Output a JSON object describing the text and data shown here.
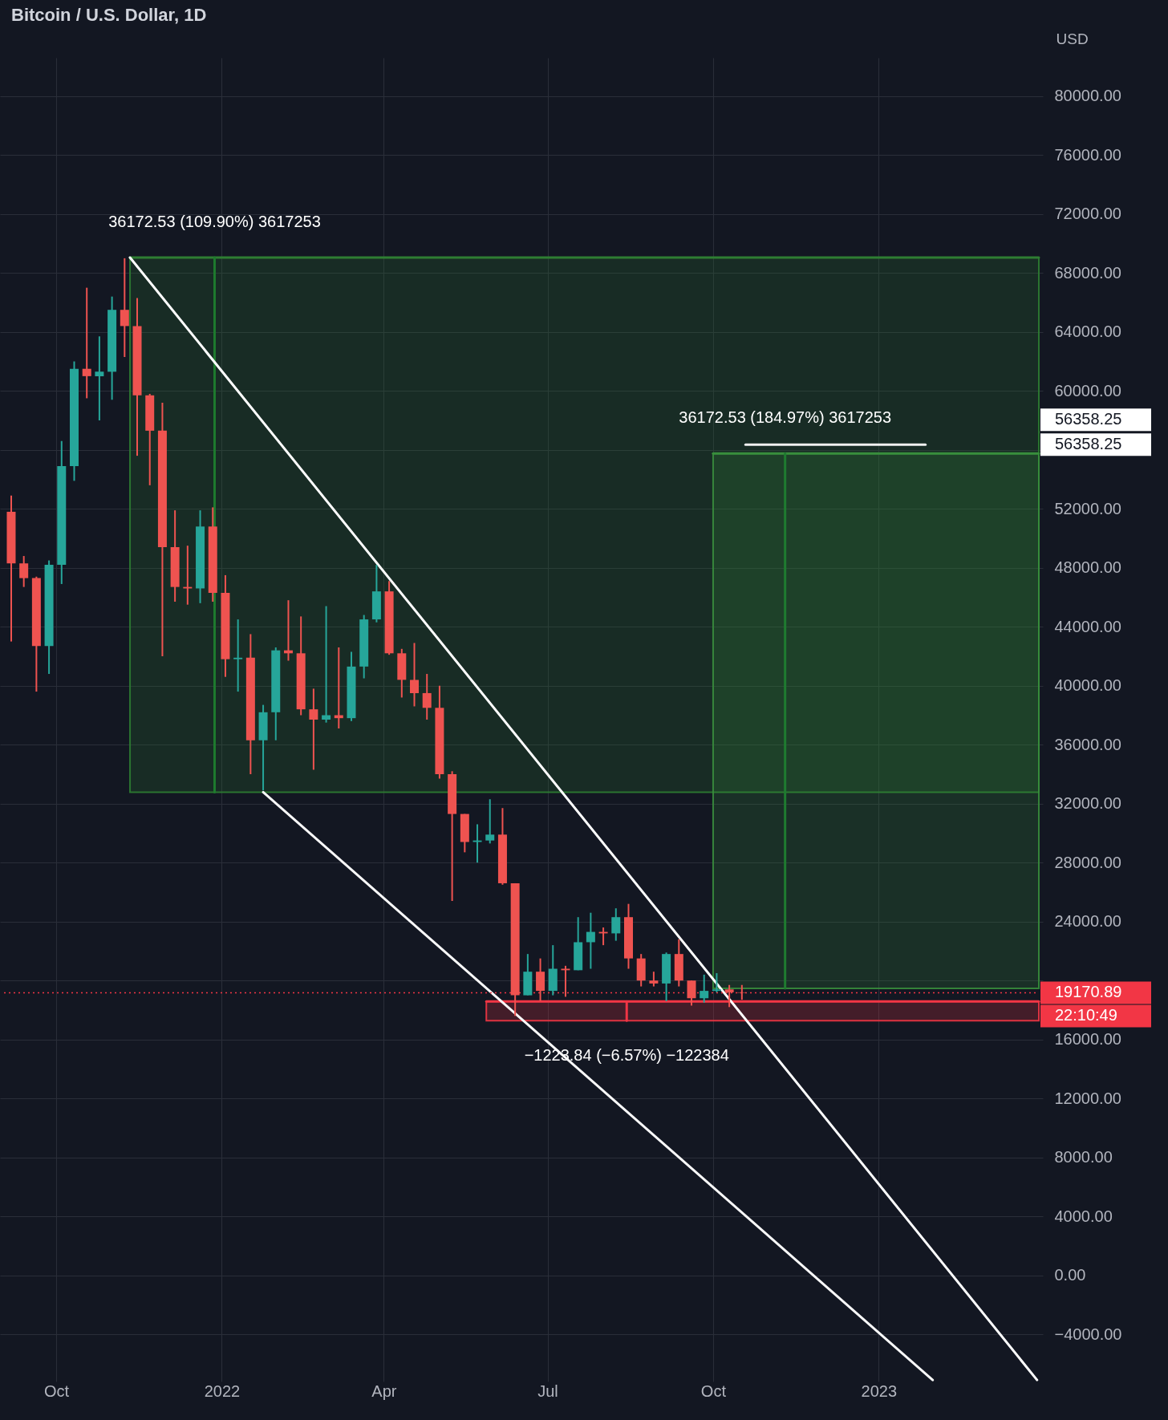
{
  "chart_data": {
    "type": "candlestick",
    "title": "Bitcoin / U.S. Dollar, 1D",
    "ylabel": "USD",
    "x": [
      "2021-09-06",
      "2021-09-13",
      "2021-09-20",
      "2021-09-27",
      "2021-10-04",
      "2021-10-11",
      "2021-10-18",
      "2021-10-25",
      "2021-11-01",
      "2021-11-08",
      "2021-11-15",
      "2021-11-22",
      "2021-11-29",
      "2021-12-06",
      "2021-12-13",
      "2021-12-20",
      "2021-12-27",
      "2022-01-03",
      "2022-01-10",
      "2022-01-17",
      "2022-01-24",
      "2022-01-31",
      "2022-02-07",
      "2022-02-14",
      "2022-02-21",
      "2022-02-28",
      "2022-03-07",
      "2022-03-14",
      "2022-03-21",
      "2022-03-28",
      "2022-04-04",
      "2022-04-11",
      "2022-04-18",
      "2022-04-25",
      "2022-05-02",
      "2022-05-09",
      "2022-05-16",
      "2022-05-23",
      "2022-05-30",
      "2022-06-06",
      "2022-06-13",
      "2022-06-20",
      "2022-06-27",
      "2022-07-04",
      "2022-07-11",
      "2022-07-18",
      "2022-07-25",
      "2022-08-01",
      "2022-08-08",
      "2022-08-15",
      "2022-08-22",
      "2022-08-29",
      "2022-09-05",
      "2022-09-12",
      "2022-09-19",
      "2022-09-26",
      "2022-10-03",
      "2022-10-10",
      "2022-10-17"
    ],
    "ohlc": [
      [
        51800,
        52900,
        43000,
        48300
      ],
      [
        48300,
        48800,
        46700,
        47300
      ],
      [
        47300,
        47400,
        39600,
        42700
      ],
      [
        42700,
        48500,
        40800,
        48200
      ],
      [
        48200,
        56600,
        46900,
        54900
      ],
      [
        54900,
        62000,
        53900,
        61500
      ],
      [
        61500,
        67000,
        59500,
        61000
      ],
      [
        61000,
        63700,
        58000,
        61300
      ],
      [
        61300,
        66400,
        59400,
        65500
      ],
      [
        65500,
        69000,
        62300,
        64400
      ],
      [
        64400,
        66300,
        55600,
        59700
      ],
      [
        59700,
        59800,
        53600,
        57300
      ],
      [
        57300,
        59200,
        42000,
        49400
      ],
      [
        49400,
        51900,
        45700,
        46700
      ],
      [
        46700,
        49500,
        45500,
        46600
      ],
      [
        46600,
        51900,
        45600,
        50800
      ],
      [
        50800,
        52100,
        45700,
        46300
      ],
      [
        46300,
        47500,
        40600,
        41800
      ],
      [
        41800,
        44500,
        39600,
        41900
      ],
      [
        41900,
        43500,
        34000,
        36300
      ],
      [
        36300,
        38700,
        32900,
        38200
      ],
      [
        38200,
        42600,
        36300,
        42400
      ],
      [
        42400,
        45800,
        41700,
        42200
      ],
      [
        42200,
        44700,
        38000,
        38400
      ],
      [
        38400,
        39800,
        34300,
        37700
      ],
      [
        37700,
        45400,
        37500,
        38000
      ],
      [
        38000,
        42600,
        37100,
        37800
      ],
      [
        37800,
        42300,
        37600,
        41300
      ],
      [
        41300,
        44800,
        40500,
        44500
      ],
      [
        44500,
        48200,
        44300,
        46400
      ],
      [
        46400,
        47100,
        42100,
        42200
      ],
      [
        42200,
        42500,
        39200,
        40400
      ],
      [
        40400,
        42900,
        38600,
        39500
      ],
      [
        39500,
        40800,
        37700,
        38500
      ],
      [
        38500,
        40000,
        33700,
        34000
      ],
      [
        34000,
        34200,
        25400,
        31300
      ],
      [
        31300,
        31300,
        28700,
        29400
      ],
      [
        29400,
        30600,
        28000,
        29500
      ],
      [
        29500,
        32300,
        29300,
        29900
      ],
      [
        29900,
        31700,
        26500,
        26600
      ],
      [
        26600,
        26600,
        17600,
        19000
      ],
      [
        19000,
        21800,
        19000,
        20600
      ],
      [
        20600,
        21500,
        18600,
        19300
      ],
      [
        19300,
        22400,
        19000,
        20800
      ],
      [
        20800,
        21000,
        18900,
        20700
      ],
      [
        20700,
        24300,
        20700,
        22600
      ],
      [
        22600,
        24600,
        20800,
        23300
      ],
      [
        23300,
        23600,
        22400,
        23200
      ],
      [
        23200,
        24900,
        22700,
        24300
      ],
      [
        24300,
        25200,
        20800,
        21500
      ],
      [
        21500,
        21800,
        19600,
        20000
      ],
      [
        20000,
        20600,
        19600,
        19800
      ],
      [
        19800,
        21900,
        18600,
        21800
      ],
      [
        21800,
        22800,
        19600,
        20000
      ],
      [
        20000,
        20000,
        18300,
        18800
      ],
      [
        18800,
        20400,
        18500,
        19300
      ],
      [
        19300,
        20500,
        19200,
        19400
      ],
      [
        19400,
        19700,
        18200,
        19200
      ],
      [
        19200,
        19700,
        18700,
        19170.89
      ]
    ],
    "colors": [
      "#ef5350",
      "#ef5350",
      "#ef5350",
      "#26a69a",
      "#26a69a",
      "#26a69a",
      "#ef5350",
      "#26a69a",
      "#26a69a",
      "#ef5350",
      "#ef5350",
      "#ef5350",
      "#ef5350",
      "#ef5350",
      "#ef5350",
      "#26a69a",
      "#ef5350",
      "#ef5350",
      "#26a69a",
      "#ef5350",
      "#26a69a",
      "#26a69a",
      "#ef5350",
      "#ef5350",
      "#ef5350",
      "#26a69a",
      "#ef5350",
      "#26a69a",
      "#26a69a",
      "#26a69a",
      "#ef5350",
      "#ef5350",
      "#ef5350",
      "#ef5350",
      "#ef5350",
      "#ef5350",
      "#ef5350",
      "#26a69a",
      "#26a69a",
      "#ef5350",
      "#ef5350",
      "#26a69a",
      "#ef5350",
      "#26a69a",
      "#ef5350",
      "#26a69a",
      "#26a69a",
      "#ef5350",
      "#26a69a",
      "#ef5350",
      "#ef5350",
      "#ef5350",
      "#26a69a",
      "#ef5350",
      "#ef5350",
      "#26a69a",
      "#26a69a",
      "#ef5350",
      "#ef5350"
    ],
    "series": [
      {
        "type": "line",
        "color": "#2e7d32",
        "x": [
          "2021-11-11",
          "2023-03-31"
        ],
        "values": [
          69050,
          69050
        ],
        "lower": [
          32780,
          32780
        ],
        "upper": [
          69050,
          69050
        ]
      },
      {
        "type": "line",
        "color": "#388e3c",
        "x": [
          "2022-10-01",
          "2023-03-31"
        ],
        "values": [
          55750,
          55750
        ],
        "lower": [
          19470,
          19470
        ],
        "upper": [
          55750,
          55750
        ]
      },
      {
        "type": "line",
        "color": "#f23645",
        "x": [
          "2022-05-28",
          "2023-03-31"
        ],
        "values": [
          18580,
          18580
        ],
        "lower": [
          17280,
          17280
        ],
        "upper": [
          18580,
          18580
        ]
      },
      {
        "type": "line",
        "color": "#1e7a2e",
        "x": [
          "2021-12-28",
          "2021-12-28"
        ],
        "values": [
          32780,
          69050
        ]
      },
      {
        "type": "line",
        "color": "#1f7b30",
        "x": [
          "2022-11-10",
          "2022-11-10"
        ],
        "values": [
          19470,
          55750
        ]
      },
      {
        "type": "line",
        "color": "#f13545",
        "x": [
          "2022-08-14",
          "2022-08-14"
        ],
        "values": [
          17280,
          18580
        ]
      },
      {
        "type": "line",
        "color": "#f0f0f0",
        "x": [
          "2022-10-19",
          "2023-01-27"
        ],
        "values": [
          56360,
          56360
        ]
      },
      {
        "type": "line",
        "color": "#ffffff",
        "x": [
          "2021-11-11",
          "2023-03-30"
        ],
        "values": [
          69050,
          -7100
        ]
      },
      {
        "type": "line",
        "color": "#fafafa",
        "x": [
          "2022-01-24",
          "2023-01-31"
        ],
        "values": [
          32780,
          -7100
        ]
      }
    ],
    "xlim": [
      "2021-09-02",
      "2023-03-31"
    ],
    "xticks": [
      {
        "value": "2021-10-01",
        "label": "Oct"
      },
      {
        "value": "2022-01-01",
        "label": "2022"
      },
      {
        "value": "2022-04-01",
        "label": "Apr"
      },
      {
        "value": "2022-07-01",
        "label": "Jul"
      },
      {
        "value": "2022-10-01",
        "label": "Oct"
      },
      {
        "value": "2023-01-01",
        "label": "2023"
      }
    ],
    "ylim": [
      -7200,
      82600
    ],
    "yticks": [
      {
        "value": -4000,
        "label": "−4000.00"
      },
      {
        "value": 0,
        "label": "0.00"
      },
      {
        "value": 4000,
        "label": "4000.00"
      },
      {
        "value": 8000,
        "label": "8000.00"
      },
      {
        "value": 12000,
        "label": "12000.00"
      },
      {
        "value": 16000,
        "label": "16000.00"
      },
      {
        "value": 20000,
        "label": null
      },
      {
        "value": 24000,
        "label": "24000.00"
      },
      {
        "value": 28000,
        "label": "28000.00"
      },
      {
        "value": 32000,
        "label": "32000.00"
      },
      {
        "value": 36000,
        "label": "36000.00"
      },
      {
        "value": 40000,
        "label": "40000.00"
      },
      {
        "value": 44000,
        "label": "44000.00"
      },
      {
        "value": 48000,
        "label": "48000.00"
      },
      {
        "value": 52000,
        "label": "52000.00"
      },
      {
        "value": 56000,
        "label": null
      },
      {
        "value": 60000,
        "label": "60000.00"
      },
      {
        "value": 64000,
        "label": "64000.00"
      },
      {
        "value": 68000,
        "label": "68000.00"
      },
      {
        "value": 72000,
        "label": "72000.00"
      },
      {
        "value": 76000,
        "label": "76000.00"
      },
      {
        "value": 80000,
        "label": "80000.00"
      }
    ],
    "grid": true,
    "ref_lines": [
      {
        "axis": "y",
        "value": 19170.89,
        "label": "19170.89",
        "color": "#f23645",
        "line_style": "dotted"
      }
    ],
    "annotations": [
      {
        "text": "36172.53 (109.90%) 3617253",
        "x": "2021-12-28",
        "y": 69050
      },
      {
        "text": "36172.53 (184.97%) 3617253",
        "x": "2022-11-10",
        "y": 55750
      },
      {
        "text": "−1223.84 (−6.57%) −122384",
        "x": "2022-08-14",
        "y": 17280
      },
      "56358.25",
      "56358.25",
      "22:10:49"
    ]
  }
}
